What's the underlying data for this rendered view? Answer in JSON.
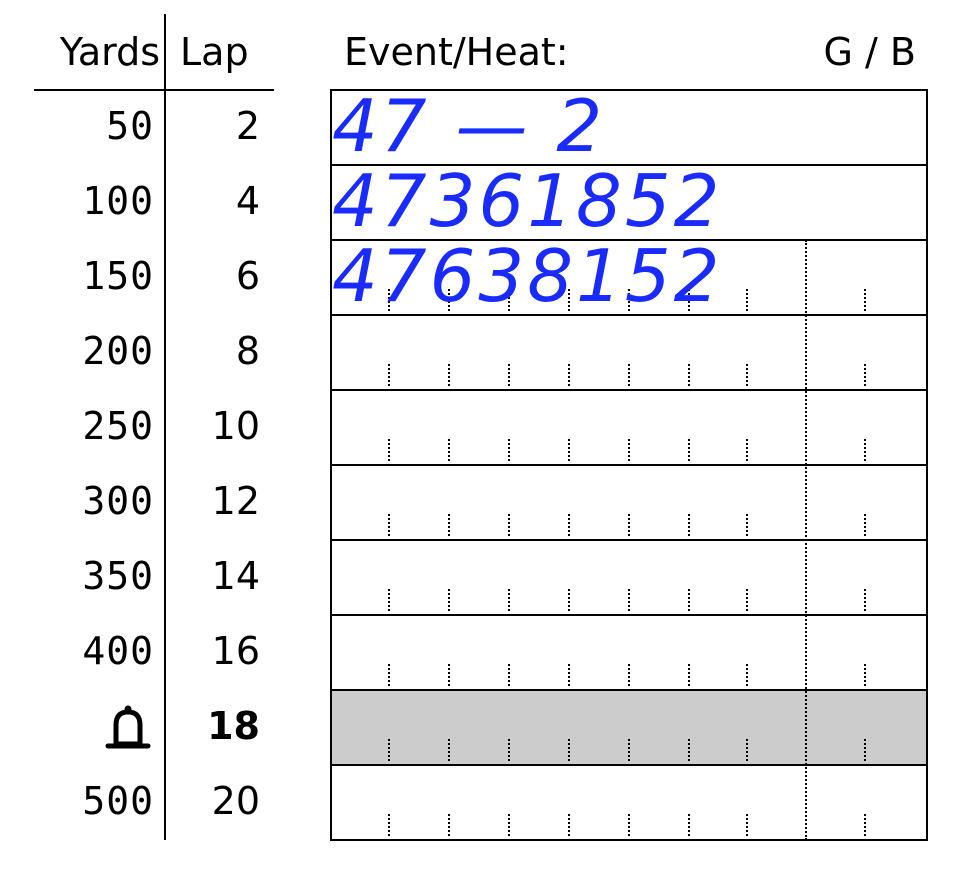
{
  "header": {
    "yards": "Yards",
    "lap": "Lap",
    "event_heat": "Event/Heat:",
    "gender": "G / B"
  },
  "rows": [
    {
      "yards": "50",
      "lap": "2"
    },
    {
      "yards": "100",
      "lap": "4"
    },
    {
      "yards": "150",
      "lap": "6"
    },
    {
      "yards": "200",
      "lap": "8"
    },
    {
      "yards": "250",
      "lap": "10"
    },
    {
      "yards": "300",
      "lap": "12"
    },
    {
      "yards": "350",
      "lap": "14"
    },
    {
      "yards": "400",
      "lap": "16"
    },
    {
      "yards": "",
      "lap": "18",
      "icon": "bell-icon",
      "bold": true,
      "shaded": true
    },
    {
      "yards": "500",
      "lap": "20"
    }
  ],
  "handwriting": [
    "47 — 2",
    "47361852",
    "47638152"
  ]
}
